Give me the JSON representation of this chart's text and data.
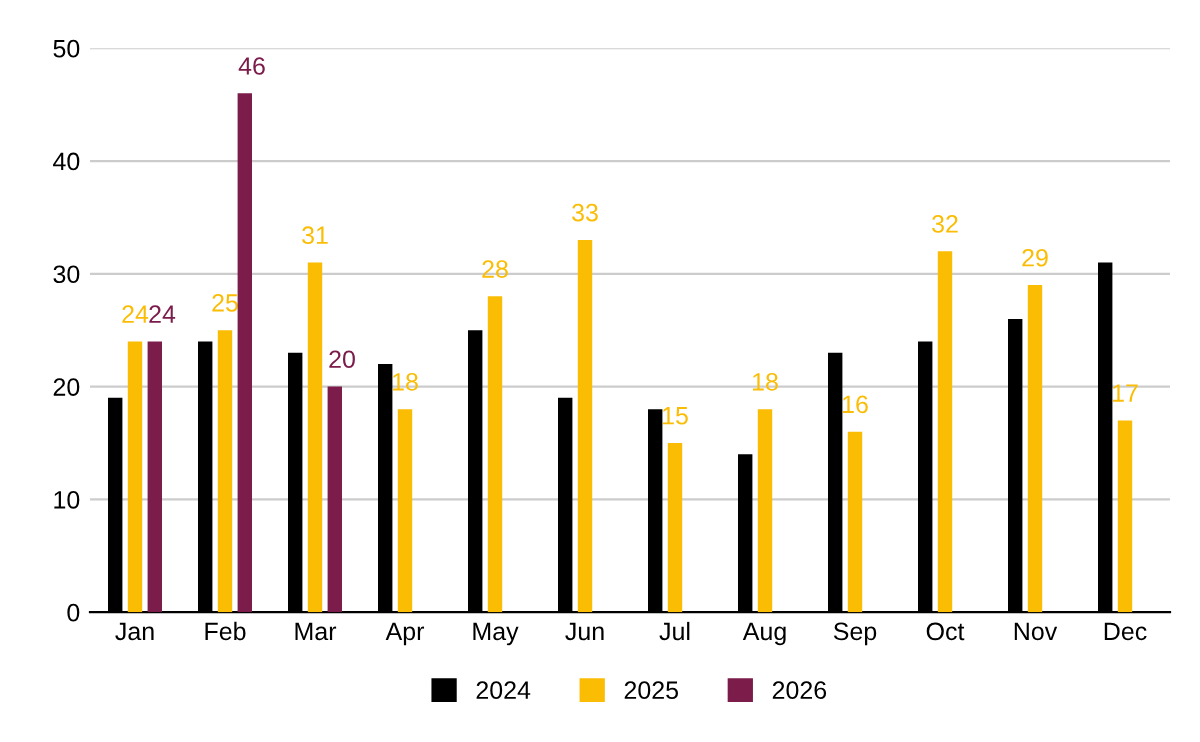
{
  "chart_data": {
    "type": "bar",
    "categories": [
      "Jan",
      "Feb",
      "Mar",
      "Apr",
      "May",
      "Jun",
      "Jul",
      "Aug",
      "Sep",
      "Oct",
      "Nov",
      "Dec"
    ],
    "series": [
      {
        "name": "2024",
        "color": "#000000",
        "values": [
          19,
          24,
          23,
          22,
          25,
          19,
          18,
          14,
          23,
          24,
          26,
          31
        ]
      },
      {
        "name": "2025",
        "color": "#fbbc04",
        "values": [
          24,
          25,
          31,
          18,
          28,
          33,
          15,
          18,
          16,
          32,
          29,
          17
        ],
        "value_labels": [
          "24",
          "25",
          "31",
          "18",
          "28",
          "33",
          "15",
          "18",
          "16",
          "32",
          "29",
          "17"
        ]
      },
      {
        "name": "2026",
        "color": "#7b1c4b",
        "values": [
          24,
          46,
          20,
          null,
          null,
          null,
          null,
          null,
          null,
          null,
          null,
          null
        ],
        "value_labels": [
          "24",
          "46",
          "20",
          null,
          null,
          null,
          null,
          null,
          null,
          null,
          null,
          null
        ]
      }
    ],
    "ylim": [
      0,
      50
    ],
    "yticks": [
      0,
      10,
      20,
      30,
      40,
      50
    ],
    "grid": "y",
    "legend": "bottom"
  }
}
